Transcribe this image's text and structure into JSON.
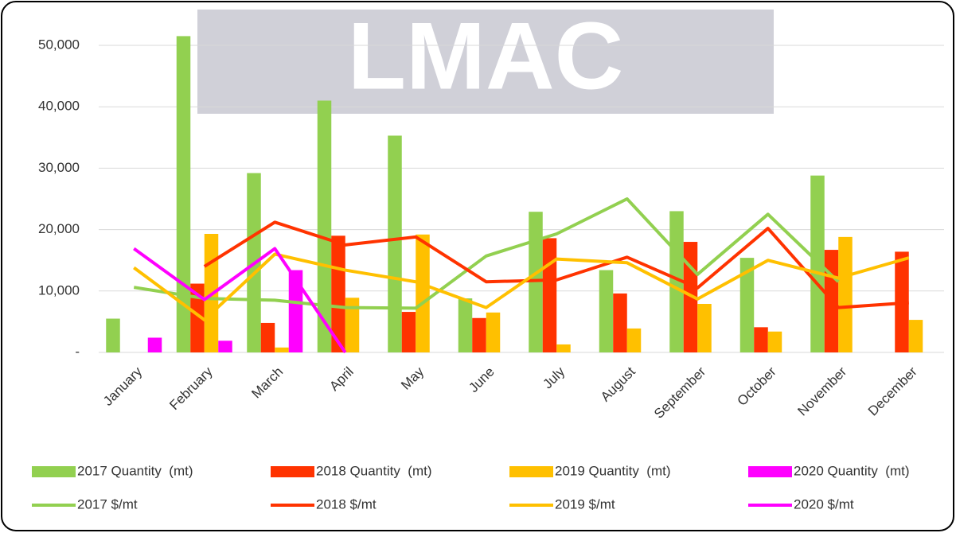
{
  "chart_data": {
    "type": "combo",
    "watermark": "LMAC",
    "categories": [
      "January",
      "February",
      "March",
      "April",
      "May",
      "June",
      "July",
      "August",
      "September",
      "October",
      "November",
      "December"
    ],
    "ylim": [
      0,
      54000
    ],
    "yticks": [
      {
        "value": 0,
        "label": "-"
      },
      {
        "value": 10000,
        "label": "10,000"
      },
      {
        "value": 20000,
        "label": "20,000"
      },
      {
        "value": 30000,
        "label": "30,000"
      },
      {
        "value": 40000,
        "label": "40,000"
      },
      {
        "value": 50000,
        "label": "50,000"
      }
    ],
    "grid": true,
    "series": [
      {
        "name": "2017 Quantity  (mt)",
        "type": "bar",
        "color": "#92d050",
        "values": [
          5500,
          51500,
          29200,
          41000,
          35300,
          8800,
          22900,
          13400,
          23000,
          15400,
          28800,
          null
        ]
      },
      {
        "name": "2018 Quantity  (mt)",
        "type": "bar",
        "color": "#ff3300",
        "values": [
          null,
          11200,
          4800,
          19000,
          6600,
          5600,
          18600,
          9600,
          18000,
          4100,
          16700,
          16400
        ]
      },
      {
        "name": "2019 Quantity  (mt)",
        "type": "bar",
        "color": "#ffc000",
        "values": [
          null,
          19300,
          800,
          8900,
          19200,
          6500,
          1300,
          3900,
          7900,
          3400,
          18800,
          5300
        ]
      },
      {
        "name": "2020 Quantity  (mt)",
        "type": "bar",
        "color": "#ff00ff",
        "values": [
          2400,
          1900,
          13400,
          null,
          null,
          null,
          null,
          null,
          null,
          null,
          null,
          null
        ]
      },
      {
        "name": "2017 $/mt",
        "type": "line",
        "color": "#92d050",
        "values": [
          10600,
          8800,
          8500,
          7300,
          7200,
          15700,
          19300,
          25000,
          12700,
          22500,
          11500,
          null
        ]
      },
      {
        "name": "2018 $/mt",
        "type": "line",
        "color": "#ff3300",
        "values": [
          null,
          14000,
          21200,
          17500,
          18800,
          11500,
          11800,
          15500,
          10500,
          20200,
          7300,
          8100
        ]
      },
      {
        "name": "2019 $/mt",
        "type": "line",
        "color": "#ffc000",
        "values": [
          13800,
          5300,
          16000,
          13400,
          11500,
          7300,
          15200,
          14600,
          8700,
          15000,
          12100,
          15400
        ]
      },
      {
        "name": "2020 $/mt",
        "type": "line",
        "color": "#ff00ff",
        "values": [
          16900,
          8600,
          16900,
          0,
          null,
          null,
          null,
          null,
          null,
          null,
          null,
          null
        ]
      }
    ]
  }
}
